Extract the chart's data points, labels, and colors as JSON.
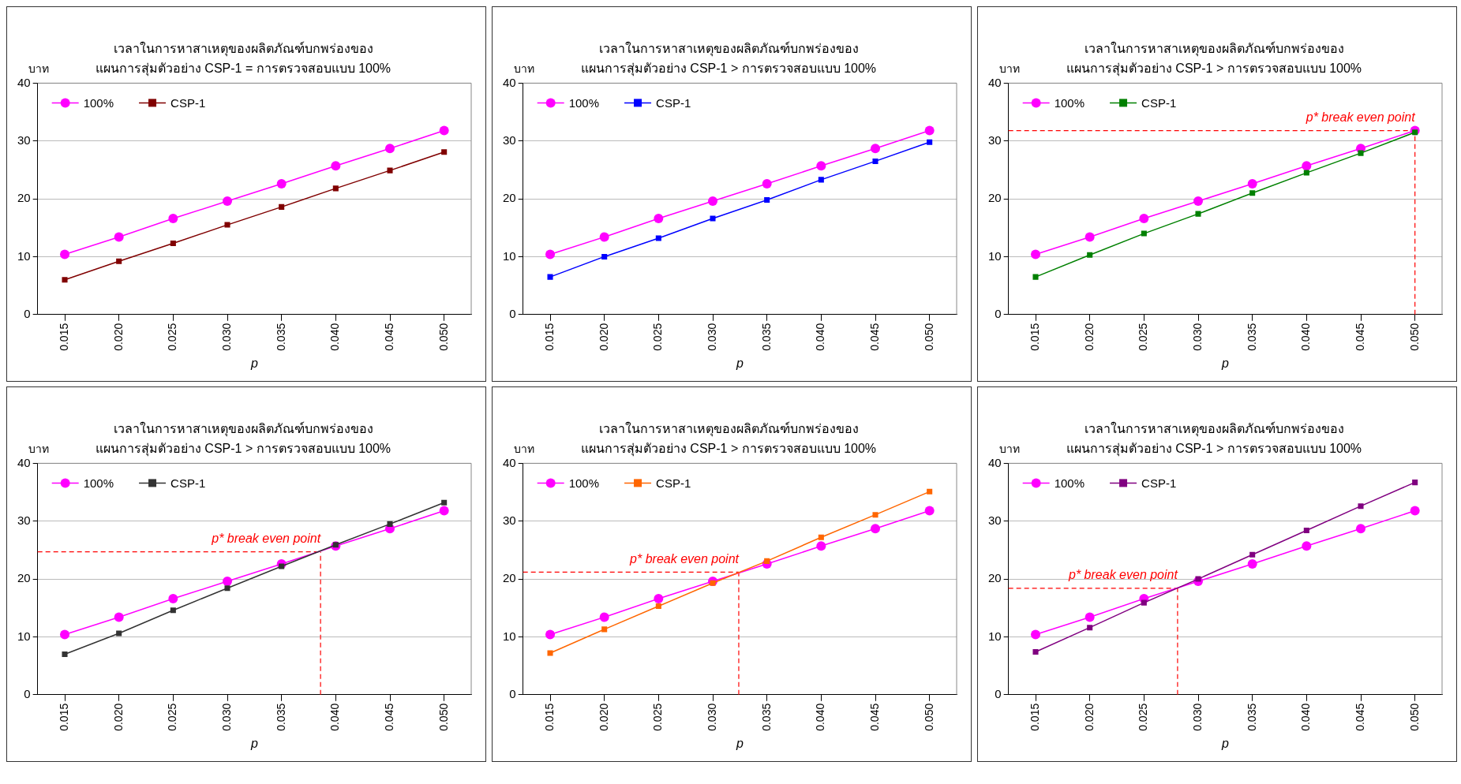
{
  "chart_data": [
    {
      "type": "line",
      "title": "เวลาในการหาสาเหตุของผลิตภัณฑ์บกพร่องของ",
      "subtitle": "แผนการสุ่มตัวอย่าง CSP-1 = การตรวจสอบแบบ 100%",
      "xlabel": "p",
      "ylabel": "บาท",
      "x": [
        0.015,
        0.02,
        0.025,
        0.03,
        0.035,
        0.04,
        0.045,
        0.05
      ],
      "xlim": [
        0.0125,
        0.0525
      ],
      "xticks": [
        0.015,
        {
          "value": 0.02,
          "label": "0.020"
        },
        0.025,
        {
          "value": 0.03,
          "label": "0.030"
        },
        0.035,
        {
          "value": 0.04,
          "label": "0.040"
        },
        0.045,
        {
          "value": 0.05,
          "label": "0.050"
        }
      ],
      "ylim": [
        0,
        40
      ],
      "yticks": [
        0,
        10,
        20,
        30,
        40
      ],
      "grid": "y",
      "legend": "top left",
      "series": [
        {
          "name": "100%",
          "color": "#ff00ff",
          "marker": "circle",
          "values": [
            10.4,
            13.4,
            16.6,
            19.6,
            22.6,
            25.7,
            28.7,
            31.8
          ]
        },
        {
          "name": "CSP-1",
          "color": "#800000",
          "marker": "square",
          "values": [
            6.0,
            9.2,
            12.3,
            15.5,
            18.6,
            21.8,
            24.9,
            28.1
          ]
        }
      ]
    },
    {
      "type": "line",
      "title": "เวลาในการหาสาเหตุของผลิตภัณฑ์บกพร่องของ",
      "subtitle": "แผนการสุ่มตัวอย่าง CSP-1 > การตรวจสอบแบบ 100%",
      "xlabel": "p",
      "ylabel": "บาท",
      "x": [
        0.015,
        0.02,
        0.025,
        0.03,
        0.035,
        0.04,
        0.045,
        0.05
      ],
      "xlim": [
        0.0125,
        0.0525
      ],
      "xticks": [
        0.015,
        {
          "value": 0.02,
          "label": "0.020"
        },
        0.025,
        {
          "value": 0.03,
          "label": "0.030"
        },
        0.035,
        {
          "value": 0.04,
          "label": "0.040"
        },
        0.045,
        {
          "value": 0.05,
          "label": "0.050"
        }
      ],
      "ylim": [
        0,
        40
      ],
      "yticks": [
        0,
        10,
        20,
        30,
        40
      ],
      "grid": "y",
      "legend": "top left",
      "series": [
        {
          "name": "100%",
          "color": "#ff00ff",
          "marker": "circle",
          "values": [
            10.4,
            13.4,
            16.6,
            19.6,
            22.6,
            25.7,
            28.7,
            31.8
          ]
        },
        {
          "name": "CSP-1",
          "color": "#0000ff",
          "marker": "square",
          "values": [
            6.5,
            10.0,
            13.2,
            16.6,
            19.8,
            23.3,
            26.5,
            29.8
          ]
        }
      ]
    },
    {
      "type": "line",
      "title": "เวลาในการหาสาเหตุของผลิตภัณฑ์บกพร่องของ",
      "subtitle": "แผนการสุ่มตัวอย่าง CSP-1 > การตรวจสอบแบบ 100%",
      "xlabel": "p",
      "ylabel": "บาท",
      "x": [
        0.015,
        0.02,
        0.025,
        0.03,
        0.035,
        0.04,
        0.045,
        0.05
      ],
      "xlim": [
        0.0125,
        0.0525
      ],
      "xticks": [
        0.015,
        {
          "value": 0.02,
          "label": "0.020"
        },
        0.025,
        {
          "value": 0.03,
          "label": "0.030"
        },
        0.035,
        {
          "value": 0.04,
          "label": "0.040"
        },
        0.045,
        {
          "value": 0.05,
          "label": "0.050"
        }
      ],
      "ylim": [
        0,
        40
      ],
      "yticks": [
        0,
        10,
        20,
        30,
        40
      ],
      "grid": "y",
      "legend": "top left",
      "series": [
        {
          "name": "100%",
          "color": "#ff00ff",
          "marker": "circle",
          "values": [
            10.4,
            13.4,
            16.6,
            19.6,
            22.6,
            25.7,
            28.7,
            31.8
          ]
        },
        {
          "name": "CSP-1",
          "color": "#008000",
          "marker": "square",
          "values": [
            6.5,
            10.3,
            14.0,
            17.4,
            21.0,
            24.5,
            27.9,
            31.5
          ]
        }
      ],
      "ref_lines": [
        {
          "axis": "y",
          "value": 31.8,
          "label": "p* break even point",
          "color": "#ff0000",
          "line_style": "dashed"
        },
        {
          "axis": "x",
          "value": 0.05,
          "color": "#ff0000",
          "line_style": "dashed"
        }
      ]
    },
    {
      "type": "line",
      "title": "เวลาในการหาสาเหตุของผลิตภัณฑ์บกพร่องของ",
      "subtitle": "แผนการสุ่มตัวอย่าง CSP-1 > การตรวจสอบแบบ 100%",
      "xlabel": "p",
      "ylabel": "บาท",
      "x": [
        0.015,
        0.02,
        0.025,
        0.03,
        0.035,
        0.04,
        0.045,
        0.05
      ],
      "xlim": [
        0.0125,
        0.0525
      ],
      "xticks": [
        0.015,
        {
          "value": 0.02,
          "label": "0.020"
        },
        0.025,
        {
          "value": 0.03,
          "label": "0.030"
        },
        0.035,
        {
          "value": 0.04,
          "label": "0.040"
        },
        0.045,
        {
          "value": 0.05,
          "label": "0.050"
        }
      ],
      "ylim": [
        0,
        40
      ],
      "yticks": [
        0,
        10,
        20,
        30,
        40
      ],
      "grid": "y",
      "legend": "top left",
      "series": [
        {
          "name": "100%",
          "color": "#ff00ff",
          "marker": "circle",
          "values": [
            10.4,
            13.4,
            16.6,
            19.6,
            22.6,
            25.7,
            28.7,
            31.8
          ]
        },
        {
          "name": "CSP-1",
          "color": "#333333",
          "marker": "square",
          "values": [
            7.0,
            10.6,
            14.6,
            18.4,
            22.2,
            25.9,
            29.5,
            33.2
          ]
        }
      ],
      "ref_lines": [
        {
          "axis": "y",
          "value": 24.7,
          "label": "p* break even point",
          "color": "#ff0000",
          "line_style": "dashed"
        },
        {
          "axis": "x",
          "value": 0.0386,
          "color": "#ff0000",
          "line_style": "dashed"
        }
      ]
    },
    {
      "type": "line",
      "title": "เวลาในการหาสาเหตุของผลิตภัณฑ์บกพร่องของ",
      "subtitle": "แผนการสุ่มตัวอย่าง CSP-1 > การตรวจสอบแบบ 100%",
      "xlabel": "p",
      "ylabel": "บาท",
      "x": [
        0.015,
        0.02,
        0.025,
        0.03,
        0.035,
        0.04,
        0.045,
        0.05
      ],
      "xlim": [
        0.0125,
        0.0525
      ],
      "xticks": [
        0.015,
        {
          "value": 0.02,
          "label": "0.020"
        },
        0.025,
        {
          "value": 0.03,
          "label": "0.030"
        },
        0.035,
        {
          "value": 0.04,
          "label": "0.040"
        },
        0.045,
        {
          "value": 0.05,
          "label": "0.050"
        }
      ],
      "ylim": [
        0,
        40
      ],
      "yticks": [
        0,
        10,
        20,
        30,
        40
      ],
      "grid": "y",
      "legend": "top left",
      "series": [
        {
          "name": "100%",
          "color": "#ff00ff",
          "marker": "circle",
          "values": [
            10.4,
            13.4,
            16.6,
            19.6,
            22.6,
            25.7,
            28.7,
            31.8
          ]
        },
        {
          "name": "CSP-1",
          "color": "#ff6600",
          "marker": "square",
          "values": [
            7.2,
            11.3,
            15.3,
            19.3,
            23.1,
            27.2,
            31.1,
            35.1
          ]
        }
      ],
      "ref_lines": [
        {
          "axis": "y",
          "value": 21.2,
          "label": "p* break even point",
          "color": "#ff0000",
          "line_style": "dashed"
        },
        {
          "axis": "x",
          "value": 0.0324,
          "color": "#ff0000",
          "line_style": "dashed"
        }
      ]
    },
    {
      "type": "line",
      "title": "เวลาในการหาสาเหตุของผลิตภัณฑ์บกพร่องของ",
      "subtitle": "แผนการสุ่มตัวอย่าง CSP-1 > การตรวจสอบแบบ 100%",
      "xlabel": "p",
      "ylabel": "บาท",
      "x": [
        0.015,
        0.02,
        0.025,
        0.03,
        0.035,
        0.04,
        0.045,
        0.05
      ],
      "xlim": [
        0.0125,
        0.0525
      ],
      "xticks": [
        0.015,
        {
          "value": 0.02,
          "label": "0.020"
        },
        0.025,
        {
          "value": 0.03,
          "label": "0.030"
        },
        0.035,
        {
          "value": 0.04,
          "label": "0.040"
        },
        0.045,
        {
          "value": 0.05,
          "label": "0.050"
        }
      ],
      "ylim": [
        0,
        40
      ],
      "yticks": [
        0,
        10,
        20,
        30,
        40
      ],
      "grid": "y",
      "legend": "top left",
      "series": [
        {
          "name": "100%",
          "color": "#ff00ff",
          "marker": "circle",
          "values": [
            10.4,
            13.4,
            16.6,
            19.6,
            22.6,
            25.7,
            28.7,
            31.8
          ]
        },
        {
          "name": "CSP-1",
          "color": "#800080",
          "marker": "square",
          "values": [
            7.4,
            11.6,
            15.9,
            20.0,
            24.2,
            28.4,
            32.6,
            36.7
          ]
        }
      ],
      "ref_lines": [
        {
          "axis": "y",
          "value": 18.4,
          "label": "p* break even point",
          "color": "#ff0000",
          "line_style": "dashed"
        },
        {
          "axis": "x",
          "value": 0.0281,
          "color": "#ff0000",
          "line_style": "dashed"
        }
      ]
    }
  ]
}
